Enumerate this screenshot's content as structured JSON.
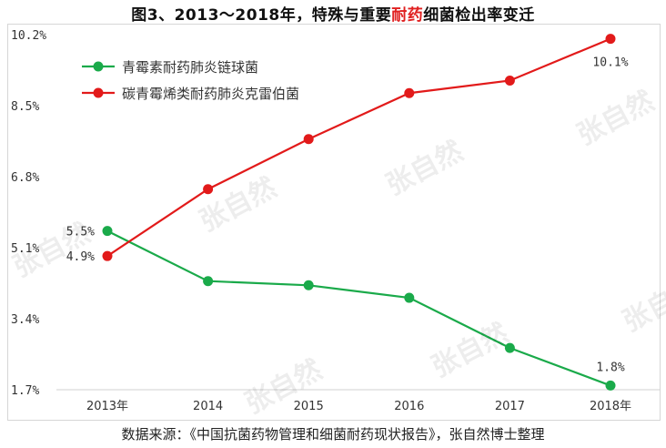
{
  "title": {
    "prefix": "图3、2013～2018年，特殊与重要",
    "highlight": "耐药",
    "suffix": "细菌检出率变迁"
  },
  "source": "数据来源：《中国抗菌药物管理和细菌耐药现状报告》，张自然博士整理",
  "watermark": "张自然",
  "colors": {
    "green": "#1aaa4a",
    "red": "#e21a1a",
    "highlight": "#e02020"
  },
  "chart_data": {
    "type": "line",
    "categories": [
      "2013年",
      "2014",
      "2015",
      "2016",
      "2017",
      "2018年"
    ],
    "y_ticks": [
      "1.7%",
      "3.4%",
      "5.1%",
      "6.8%",
      "8.5%",
      "10.2%"
    ],
    "ylim": [
      1.7,
      10.2
    ],
    "grid": false,
    "legend_position": "top-left",
    "series": [
      {
        "name": "青霉素耐药肺炎链球菌",
        "color": "#1aaa4a",
        "values": [
          5.5,
          4.3,
          4.2,
          3.9,
          2.7,
          1.8
        ],
        "labels": [
          "5.5%",
          "",
          "",
          "",
          "",
          "1.8%"
        ]
      },
      {
        "name": "碳青霉烯类耐药肺炎克雷伯菌",
        "color": "#e21a1a",
        "values": [
          4.9,
          6.5,
          7.7,
          8.8,
          9.1,
          10.1
        ],
        "labels": [
          "4.9%",
          "",
          "",
          "",
          "",
          "10.1%"
        ]
      }
    ]
  }
}
